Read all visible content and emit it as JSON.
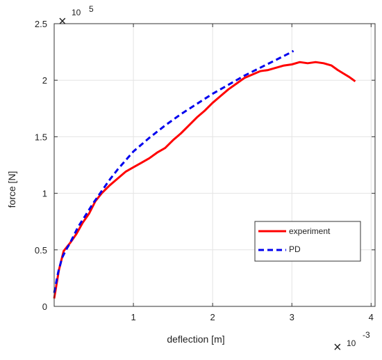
{
  "chart_data": {
    "type": "line",
    "title": "",
    "xlabel": "deflection [m]",
    "ylabel": "force [N]",
    "x_multiplier_label": "10",
    "x_multiplier_exponent": "-3",
    "y_multiplier_label": "10",
    "y_multiplier_exponent": "5",
    "multiplier_symbol": "×",
    "xlim": [
      0,
      4.05
    ],
    "ylim": [
      0,
      2.5
    ],
    "x_ticks": [
      1,
      2,
      3,
      4
    ],
    "x_tick_labels": [
      "1",
      "2",
      "3",
      "4"
    ],
    "y_ticks": [
      0,
      0.5,
      1,
      1.5,
      2,
      2.5
    ],
    "y_tick_labels": [
      "0",
      "0.5",
      "1",
      "1.5",
      "2",
      "2.5"
    ],
    "grid": true,
    "legend_position": "lower-right",
    "series": [
      {
        "name": "experiment",
        "color": "#ff0000",
        "style": "solid",
        "x": [
          0.0,
          0.06,
          0.12,
          0.2,
          0.28,
          0.36,
          0.44,
          0.52,
          0.6,
          0.7,
          0.8,
          0.9,
          1.0,
          1.1,
          1.2,
          1.3,
          1.4,
          1.5,
          1.6,
          1.7,
          1.8,
          1.9,
          2.0,
          2.1,
          2.2,
          2.3,
          2.4,
          2.5,
          2.6,
          2.7,
          2.8,
          2.9,
          3.0,
          3.1,
          3.2,
          3.3,
          3.4,
          3.5,
          3.58,
          3.65,
          3.72,
          3.8
        ],
        "y": [
          0.07,
          0.32,
          0.49,
          0.56,
          0.64,
          0.74,
          0.82,
          0.93,
          1.0,
          1.07,
          1.13,
          1.19,
          1.23,
          1.27,
          1.31,
          1.36,
          1.4,
          1.47,
          1.53,
          1.6,
          1.67,
          1.73,
          1.8,
          1.86,
          1.92,
          1.97,
          2.02,
          2.05,
          2.08,
          2.09,
          2.11,
          2.13,
          2.14,
          2.16,
          2.15,
          2.16,
          2.15,
          2.13,
          2.09,
          2.06,
          2.03,
          1.99
        ]
      },
      {
        "name": "PD",
        "color": "#0000ee",
        "style": "dashed",
        "x": [
          0.0,
          0.05,
          0.1,
          0.15,
          0.2,
          0.3,
          0.4,
          0.5,
          0.6,
          0.7,
          0.8,
          0.9,
          1.0,
          1.2,
          1.4,
          1.6,
          1.8,
          2.0,
          2.2,
          2.4,
          2.6,
          2.8,
          3.0,
          3.02
        ],
        "y": [
          0.12,
          0.3,
          0.43,
          0.5,
          0.56,
          0.7,
          0.81,
          0.92,
          1.02,
          1.12,
          1.21,
          1.29,
          1.37,
          1.49,
          1.6,
          1.7,
          1.79,
          1.88,
          1.96,
          2.04,
          2.11,
          2.18,
          2.25,
          2.26
        ]
      }
    ]
  }
}
